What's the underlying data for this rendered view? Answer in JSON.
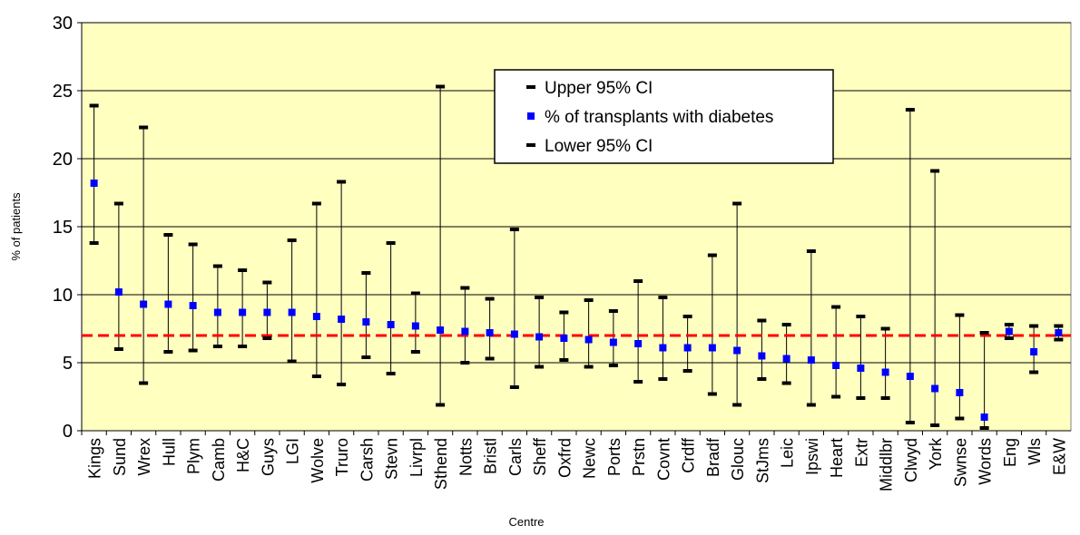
{
  "chart_data": {
    "type": "errorbar",
    "x_label": "Centre",
    "y_label": "% of patients",
    "categories": [
      "Kings",
      "Sund",
      "Wrex",
      "Hull",
      "Plym",
      "Camb",
      "H&C",
      "Guys",
      "LGI",
      "Wolve",
      "Truro",
      "Carsh",
      "Stevn",
      "Livrpl",
      "Sthend",
      "Notts",
      "Bristl",
      "Carls",
      "Sheff",
      "Oxfrd",
      "Newc",
      "Ports",
      "Prstn",
      "Covnt",
      "Crdff",
      "Bradf",
      "Glouc",
      "StJms",
      "Leic",
      "Ipswi",
      "Heart",
      "Extr",
      "Middlbr",
      "Clwyd",
      "York",
      "Swnse",
      "Words",
      "Eng",
      "Wls",
      "E&W"
    ],
    "series": [
      {
        "name": "Upper 95% CI",
        "color": "#000000",
        "marker": "dash",
        "values": [
          23.9,
          16.7,
          22.3,
          14.4,
          13.7,
          12.1,
          11.8,
          10.9,
          14.0,
          16.7,
          18.3,
          11.6,
          13.8,
          10.1,
          25.3,
          10.5,
          9.7,
          14.8,
          9.8,
          8.7,
          9.6,
          8.8,
          11.0,
          9.8,
          8.4,
          12.9,
          16.7,
          8.1,
          7.8,
          13.2,
          9.1,
          8.4,
          7.5,
          23.6,
          19.1,
          8.5,
          7.2,
          7.8,
          7.7,
          7.7
        ]
      },
      {
        "name": "% of transplants with diabetes",
        "color": "#0000ff",
        "marker": "square",
        "values": [
          18.2,
          10.2,
          9.3,
          9.3,
          9.2,
          8.7,
          8.7,
          8.7,
          8.7,
          8.4,
          8.2,
          8.0,
          7.8,
          7.7,
          7.4,
          7.3,
          7.2,
          7.1,
          6.9,
          6.8,
          6.7,
          6.5,
          6.4,
          6.1,
          6.1,
          6.1,
          5.9,
          5.5,
          5.3,
          5.2,
          4.8,
          4.6,
          4.3,
          4.0,
          3.1,
          2.8,
          1.0,
          7.3,
          5.8,
          7.2
        ]
      },
      {
        "name": "Lower 95% CI",
        "color": "#000000",
        "marker": "dash",
        "values": [
          13.8,
          6.0,
          3.5,
          5.8,
          5.9,
          6.2,
          6.2,
          6.8,
          5.1,
          4.0,
          3.4,
          5.4,
          4.2,
          5.8,
          1.9,
          5.0,
          5.3,
          3.2,
          4.7,
          5.2,
          4.7,
          4.8,
          3.6,
          3.8,
          4.4,
          2.7,
          1.9,
          3.8,
          3.5,
          1.9,
          2.5,
          2.4,
          2.4,
          0.6,
          0.4,
          0.9,
          0.2,
          6.8,
          4.3,
          6.7
        ]
      }
    ],
    "reference_value": 7.0,
    "reference_color": "#ff0000",
    "ylim": [
      0,
      30
    ],
    "yticks": [
      0,
      5,
      10,
      15,
      20,
      25,
      30
    ],
    "grid": true,
    "plot_background": "#ffffc0"
  }
}
